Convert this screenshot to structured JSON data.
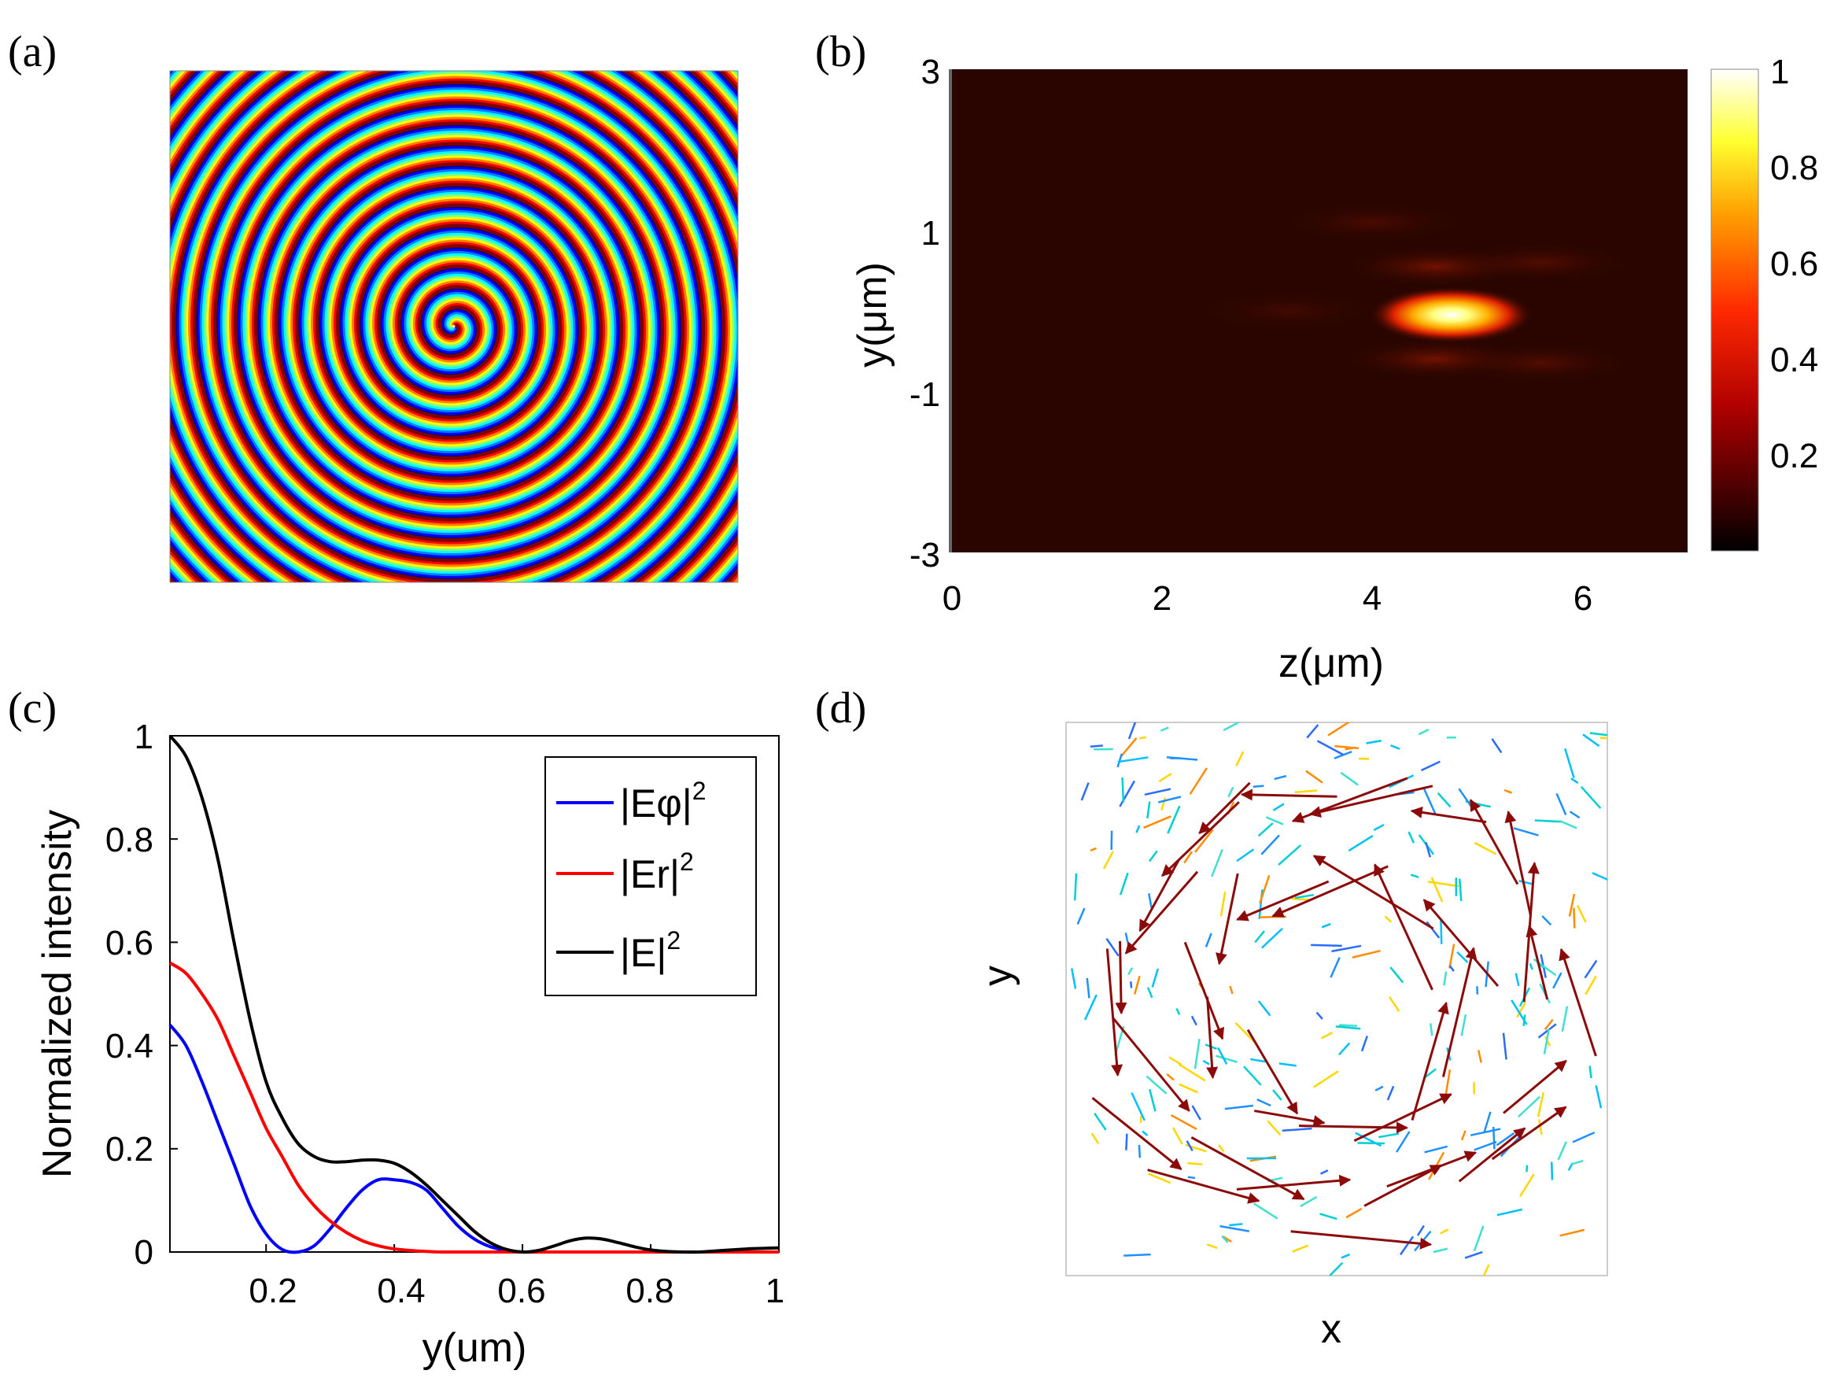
{
  "panels": {
    "a": {
      "label": "(a)"
    },
    "b": {
      "label": "(b)",
      "xlabel": "z(μm)",
      "ylabel": "y(μm)",
      "xticks": [
        "0",
        "2",
        "4",
        "6"
      ],
      "yticks": [
        "3",
        "1",
        "-1",
        "-3"
      ],
      "colorbar_ticks": [
        "1",
        "0.8",
        "0.6",
        "0.4",
        "0.2"
      ]
    },
    "c": {
      "label": "(c)",
      "xlabel": "y(um)",
      "ylabel": "Normalized intensity",
      "xticks": [
        "0.2",
        "0.4",
        "0.6",
        "0.8",
        "1"
      ],
      "yticks": [
        "1",
        "0.8",
        "0.6",
        "0.4",
        "0.2",
        "0"
      ],
      "legend": [
        "|Eφ|",
        "|Er|",
        "|E|"
      ],
      "legend_sup": "2"
    },
    "d": {
      "label": "(d)",
      "xlabel": "x",
      "ylabel": "y"
    }
  },
  "chart_data": [
    {
      "panel": "a",
      "type": "heatmap",
      "description_kind": "spiral phase pattern",
      "colormap": "jet",
      "grid": false
    },
    {
      "panel": "b",
      "type": "heatmap",
      "xlabel": "z(μm)",
      "ylabel": "y(μm)",
      "xlim": [
        0,
        7
      ],
      "ylim": [
        -3,
        3
      ],
      "x_ticks": [
        0,
        2,
        4,
        6
      ],
      "y_ticks": [
        -3,
        -1,
        1,
        3
      ],
      "colormap": "hot",
      "clim": [
        0,
        1
      ],
      "colorbar_ticks": [
        0.2,
        0.4,
        0.6,
        0.8,
        1
      ],
      "peak": {
        "z": 4.75,
        "y": -0.05,
        "value": 1
      },
      "side_lobes": [
        {
          "z": 4.6,
          "y": 0.55,
          "value": 0.18
        },
        {
          "z": 4.6,
          "y": -0.6,
          "value": 0.18
        },
        {
          "z": 4.0,
          "y": 1.1,
          "value": 0.08
        },
        {
          "z": 5.6,
          "y": 0.6,
          "value": 0.1
        },
        {
          "z": 5.6,
          "y": -0.65,
          "value": 0.1
        },
        {
          "z": 3.2,
          "y": 0.0,
          "value": 0.06
        }
      ]
    },
    {
      "panel": "c",
      "type": "line",
      "xlabel": "y(um)",
      "ylabel": "Normalized intensity",
      "xlim": [
        0.05,
        1
      ],
      "ylim": [
        0,
        1
      ],
      "x_ticks": [
        0.2,
        0.4,
        0.6,
        0.8,
        1
      ],
      "y_ticks": [
        0,
        0.2,
        0.4,
        0.6,
        0.8,
        1
      ],
      "legend_position": "top-right",
      "x": [
        0.05,
        0.075,
        0.1,
        0.125,
        0.15,
        0.175,
        0.2,
        0.225,
        0.25,
        0.275,
        0.3,
        0.325,
        0.35,
        0.375,
        0.4,
        0.425,
        0.45,
        0.475,
        0.5,
        0.525,
        0.55,
        0.575,
        0.6,
        0.625,
        0.65,
        0.675,
        0.7,
        0.725,
        0.75,
        0.775,
        0.8,
        0.825,
        0.85,
        0.875,
        0.9,
        0.925,
        0.95,
        0.975,
        1.0
      ],
      "series": [
        {
          "name": "|Eφ|^2",
          "color": "#0000ff",
          "values": [
            0.44,
            0.4,
            0.33,
            0.25,
            0.17,
            0.09,
            0.035,
            0.005,
            0.0,
            0.012,
            0.045,
            0.085,
            0.12,
            0.14,
            0.14,
            0.135,
            0.12,
            0.085,
            0.05,
            0.025,
            0.01,
            0.003,
            0.0,
            0.0,
            0.0,
            0.0,
            0.0,
            0.0,
            0.0,
            0.0,
            0.0,
            0.0,
            0.0,
            0.0,
            0.0,
            0.0,
            0.0,
            0.0,
            0.0
          ]
        },
        {
          "name": "|Er|^2",
          "color": "#ff0000",
          "values": [
            0.56,
            0.54,
            0.5,
            0.45,
            0.38,
            0.31,
            0.24,
            0.185,
            0.13,
            0.09,
            0.06,
            0.038,
            0.022,
            0.012,
            0.006,
            0.003,
            0.001,
            0.0,
            0.0,
            0.0,
            0.0,
            0.0,
            0.0,
            0.0,
            0.0,
            0.0,
            0.0,
            0.0,
            0.0,
            0.0,
            0.0,
            0.0,
            0.0,
            0.0,
            0.0,
            0.0,
            0.0,
            0.0,
            0.0
          ]
        },
        {
          "name": "|E|^2",
          "color": "#000000",
          "values": [
            1.0,
            0.96,
            0.88,
            0.76,
            0.6,
            0.45,
            0.33,
            0.26,
            0.21,
            0.185,
            0.175,
            0.175,
            0.178,
            0.178,
            0.172,
            0.155,
            0.13,
            0.1,
            0.07,
            0.04,
            0.018,
            0.005,
            0.0,
            0.003,
            0.012,
            0.022,
            0.027,
            0.025,
            0.018,
            0.01,
            0.004,
            0.001,
            0.0,
            0.0,
            0.002,
            0.004,
            0.006,
            0.007,
            0.008
          ]
        }
      ]
    },
    {
      "panel": "d",
      "type": "scatter",
      "description_kind": "vector field (quiver), circulating arrows",
      "xlabel": "x",
      "ylabel": "y"
    }
  ]
}
